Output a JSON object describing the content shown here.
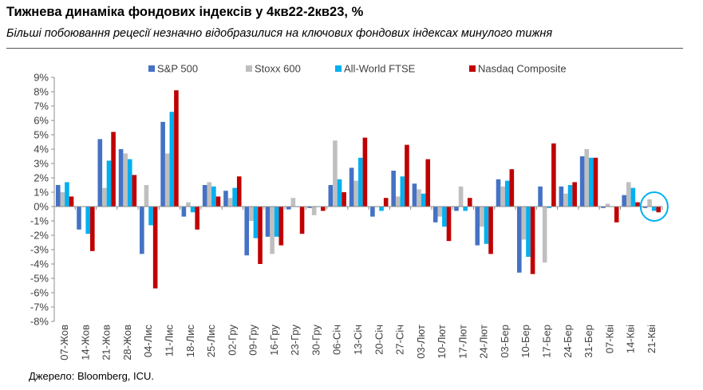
{
  "header": {
    "title": "Тижнева динаміка фондових індексів у 4кв22-2кв23, %",
    "subtitle": "Більші побоювання рецесії незначно відобразилися на ключових фондових індексах минулого тижня"
  },
  "footer": {
    "source": "Джерело: Bloomberg, ICU."
  },
  "chart_data": {
    "type": "bar",
    "title": "Тижнева динаміка фондових індексів у 4кв22-2кв23, %",
    "ylabel": "%",
    "xlabel": "",
    "ylim": [
      -8,
      9
    ],
    "yticks": [
      "9%",
      "8%",
      "7%",
      "6%",
      "5%",
      "4%",
      "3%",
      "2%",
      "1%",
      "0%",
      "-1%",
      "-2%",
      "-3%",
      "-4%",
      "-5%",
      "-6%",
      "-7%",
      "-8%"
    ],
    "legend_position": "top",
    "categories": [
      "07-Жов",
      "14-Жов",
      "21-Жов",
      "28-Жов",
      "04-Лис",
      "11-Лис",
      "18-Лис",
      "25-Лис",
      "02-Гру",
      "09-Гру",
      "16-Гру",
      "23-Гру",
      "30-Гру",
      "06-Січ",
      "13-Січ",
      "20-Січ",
      "27-Січ",
      "03-Лют",
      "10-Лют",
      "17-Лют",
      "24-Лют",
      "03-Бер",
      "10-Бер",
      "17-Бер",
      "24-Бер",
      "31-Бер",
      "07-Кві",
      "14-Кві",
      "21-Кві"
    ],
    "series": [
      {
        "name": "S&P 500",
        "color": "#4472C4",
        "values": [
          1.5,
          -1.6,
          4.7,
          4.0,
          -3.3,
          5.9,
          -0.7,
          1.5,
          1.1,
          -3.4,
          -2.1,
          -0.2,
          -0.1,
          1.5,
          2.7,
          -0.7,
          2.5,
          1.6,
          -1.1,
          -0.3,
          -2.7,
          1.9,
          -4.6,
          1.4,
          1.4,
          3.5,
          -0.1,
          0.8,
          -0.1
        ]
      },
      {
        "name": "Stoxx 600",
        "color": "#BFBFBF",
        "values": [
          1.0,
          0.0,
          1.3,
          3.7,
          1.5,
          3.7,
          0.3,
          1.7,
          0.6,
          -1.0,
          -3.3,
          0.6,
          -0.6,
          4.6,
          1.8,
          0.0,
          0.7,
          1.2,
          -0.7,
          1.4,
          -1.4,
          1.4,
          -2.3,
          -3.9,
          0.9,
          4.0,
          0.2,
          1.7,
          0.5
        ]
      },
      {
        "name": "All-World FTSE",
        "color": "#00B0F0",
        "values": [
          1.7,
          -1.9,
          3.2,
          3.3,
          -1.3,
          6.6,
          -0.4,
          1.4,
          1.3,
          -2.2,
          -2.1,
          0.0,
          0.0,
          1.9,
          3.4,
          -0.3,
          2.1,
          0.9,
          -1.4,
          -0.3,
          -2.6,
          1.8,
          -3.5,
          -0.1,
          1.5,
          3.4,
          0.0,
          1.3,
          -0.3
        ]
      },
      {
        "name": "Nasdaq Composite",
        "color": "#C00000",
        "values": [
          0.7,
          -3.1,
          5.2,
          2.2,
          -5.7,
          8.1,
          -1.6,
          0.7,
          2.1,
          -4.0,
          -2.7,
          -1.9,
          -0.3,
          1.0,
          4.8,
          0.6,
          4.3,
          3.3,
          -2.4,
          0.6,
          -3.3,
          2.6,
          -4.7,
          4.4,
          1.7,
          3.4,
          -1.1,
          0.3,
          -0.4
        ]
      }
    ],
    "annotations": [
      {
        "type": "ellipse-highlight",
        "category": "21-Кві",
        "color": "#00B0F0"
      }
    ]
  }
}
